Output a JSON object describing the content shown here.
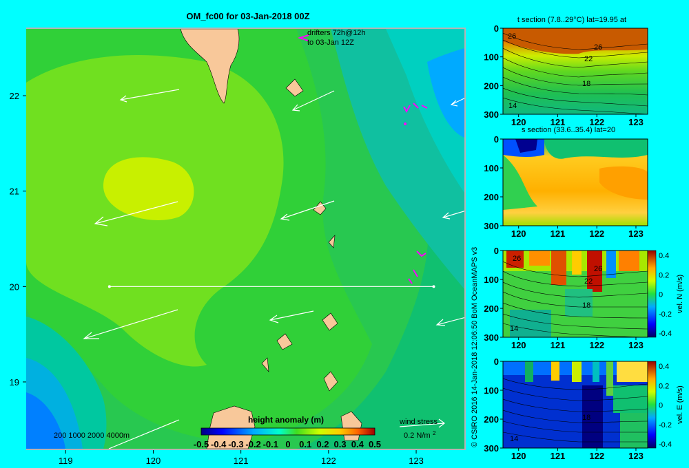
{
  "colors": {
    "background": "#00ffff",
    "land": "#f8c89a",
    "frame": "#b4b4b4",
    "drifter": "#ff00ff",
    "vector": "#ffffff"
  },
  "chart_data": [
    {
      "type": "heatmap",
      "title": "OM_fc00 for 03-Jan-2018 00Z",
      "xlabel": "",
      "ylabel": "",
      "xlim": [
        118.55,
        123.55
      ],
      "ylim": [
        18.3,
        22.7
      ],
      "x_ticks": [
        "119",
        "120",
        "121",
        "122",
        "123"
      ],
      "y_ticks": [
        "19",
        "20",
        "21",
        "22"
      ],
      "drifter_label": [
        "drifters 72h@12h",
        "to 03-Jan 12Z"
      ],
      "bathymetry_label": "200  1000  2000  4000m",
      "wind_stress_label": "wind stress",
      "wind_stress_unit": "0.2 N/m",
      "wind_stress_exp": "2",
      "colorbar": {
        "label": "height anomaly (m)",
        "range": [
          -0.5,
          0.5
        ],
        "ticks": [
          "-0.5",
          "-0.4",
          "-0.3",
          "-0.2",
          "-0.1",
          "0",
          "0.1",
          "0.2",
          "0.3",
          "0.4",
          "0.5"
        ]
      },
      "section_line": {
        "lat": 20,
        "lon": [
          119.5,
          123.2
        ]
      }
    },
    {
      "type": "heatmap",
      "title": "t section (7.8..29°C) lat=19.95 at",
      "x_ticks": [
        "120",
        "121",
        "122",
        "123"
      ],
      "y_ticks": [
        "0",
        "100",
        "200",
        "300"
      ],
      "contour_labels": [
        "26",
        "26",
        "22",
        "18",
        "14"
      ]
    },
    {
      "type": "heatmap",
      "title": "s section (33.6..35.4) lat=20",
      "x_ticks": [
        "120",
        "121",
        "122",
        "123"
      ],
      "y_ticks": [
        "0",
        "100",
        "200",
        "300"
      ]
    },
    {
      "type": "heatmap",
      "title": "",
      "x_ticks": [
        "120",
        "121",
        "122",
        "123"
      ],
      "y_ticks": [
        "0",
        "100",
        "200",
        "300"
      ],
      "contour_labels": [
        "26",
        "26",
        "22",
        "18",
        "14"
      ],
      "colorbar": {
        "label": "vel. N (m/s)",
        "range": [
          -0.4,
          0.4
        ],
        "ticks": [
          "0.4",
          "0.2",
          "0",
          "-0.2",
          "-0.4"
        ]
      }
    },
    {
      "type": "heatmap",
      "title": "",
      "x_ticks": [
        "120",
        "121",
        "122",
        "123"
      ],
      "y_ticks": [
        "0",
        "100",
        "200",
        "300"
      ],
      "contour_labels": [
        "14",
        "18"
      ],
      "colorbar": {
        "label": "vel. E (m/s)",
        "range": [
          -0.4,
          0.4
        ],
        "ticks": [
          "0.4",
          "0.2",
          "0",
          "-0.2",
          "-0.4"
        ]
      }
    }
  ],
  "credit": "© CSIRO 2016   14-Jan-2018 12:06:50 BoM OceanMAPS v3"
}
